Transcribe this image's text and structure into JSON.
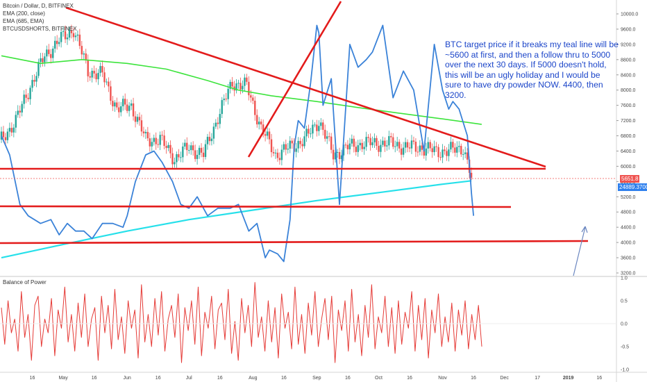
{
  "legend": {
    "symbol": "Bitcoin / Dollar, D, BITFINEX",
    "ema200": "EMA (200, close)",
    "ema685": "EMA (685, EMA)",
    "shorts": "BTCUSDSHORTS, BITFINEX"
  },
  "annotation": "BTC target price if it breaks my teal line will be ~5600 at first, and then a follow thru to 5000 over the next 30 days. If 5000 doesn't hold, this will be an ugly holiday and I would be sure to have dry powder NOW. 4400, then 3200.",
  "lower_pane_label": "Balance of Power",
  "tags": {
    "last_price": "5651.8",
    "shorts_value": "24889.3700"
  },
  "colors": {
    "up": "#26a69a",
    "down": "#ef5350",
    "ema200": "#3ce43c",
    "ema685": "#26e0ea",
    "shorts": "#3a82d8",
    "trend": "#e31b1b",
    "bop": "#e53935",
    "arrow": "#6a86c0"
  },
  "chart_data": [
    {
      "type": "line",
      "title": "Bitcoin / Dollar, D, BITFINEX",
      "x_tick_labels": [
        "16",
        "May",
        "16",
        "Jun",
        "16",
        "Jul",
        "16",
        "Aug",
        "16",
        "Sep",
        "16",
        "Oct",
        "16",
        "Nov",
        "16",
        "Dec",
        "17",
        "2019",
        "16"
      ],
      "y_tick_labels": [
        "10000.0",
        "9600.0",
        "9200.0",
        "8800.0",
        "8400.0",
        "8000.0",
        "7600.0",
        "7200.0",
        "6800.0",
        "6400.0",
        "6000.0",
        "5600.0",
        "5200.0",
        "4800.0",
        "4400.0",
        "4000.0",
        "3600.0",
        "3200.0"
      ],
      "ylim": [
        3200,
        10250
      ],
      "xlim": [
        "2018-04-01",
        "2019-01-23"
      ],
      "price_close": {
        "x": [
          "2018-04-01",
          "2018-04-08",
          "2018-04-15",
          "2018-04-22",
          "2018-04-29",
          "2018-05-06",
          "2018-05-13",
          "2018-05-20",
          "2018-05-27",
          "2018-06-03",
          "2018-06-10",
          "2018-06-17",
          "2018-06-24",
          "2018-07-01",
          "2018-07-08",
          "2018-07-15",
          "2018-07-22",
          "2018-07-29",
          "2018-08-05",
          "2018-08-12",
          "2018-08-19",
          "2018-08-26",
          "2018-09-02",
          "2018-09-09",
          "2018-09-16",
          "2018-09-23",
          "2018-09-30",
          "2018-10-07",
          "2018-10-14",
          "2018-10-21",
          "2018-10-28",
          "2018-11-04",
          "2018-11-11",
          "2018-11-14",
          "2018-11-15"
        ],
        "y": [
          6700,
          7200,
          8100,
          8900,
          9300,
          9600,
          8500,
          8400,
          7500,
          7600,
          6700,
          6700,
          6200,
          6500,
          6300,
          7300,
          8200,
          8100,
          7000,
          6300,
          6500,
          6700,
          7200,
          6300,
          6500,
          6600,
          6600,
          6600,
          6500,
          6500,
          6400,
          6400,
          6500,
          5900,
          5650
        ]
      },
      "series": [
        {
          "name": "EMA (200, close)",
          "x": [
            "2018-04-01",
            "2018-04-20",
            "2018-05-10",
            "2018-06-01",
            "2018-06-20",
            "2018-07-10",
            "2018-07-25",
            "2018-08-10",
            "2018-09-01",
            "2018-09-20",
            "2018-10-10",
            "2018-10-31",
            "2018-11-20"
          ],
          "y": [
            8900,
            8700,
            8800,
            8700,
            8550,
            8250,
            8000,
            7850,
            7700,
            7550,
            7400,
            7250,
            7100
          ]
        },
        {
          "name": "EMA (685, EMA)",
          "x": [
            "2018-04-01",
            "2018-05-01",
            "2018-06-01",
            "2018-07-01",
            "2018-08-01",
            "2018-09-01",
            "2018-10-01",
            "2018-11-01",
            "2018-11-15"
          ],
          "y": [
            3600,
            3950,
            4300,
            4600,
            4850,
            5100,
            5310,
            5530,
            5620
          ]
        },
        {
          "name": "BTCUSDSHORTS, BITFINEX",
          "x": [
            "2018-04-01",
            "2018-04-05",
            "2018-04-10",
            "2018-04-14",
            "2018-04-20",
            "2018-04-25",
            "2018-04-29",
            "2018-05-03",
            "2018-05-07",
            "2018-05-11",
            "2018-05-15",
            "2018-05-20",
            "2018-05-25",
            "2018-05-30",
            "2018-06-01",
            "2018-06-05",
            "2018-06-10",
            "2018-06-14",
            "2018-06-18",
            "2018-06-23",
            "2018-06-27",
            "2018-07-01",
            "2018-07-05",
            "2018-07-10",
            "2018-07-15",
            "2018-07-18",
            "2018-07-21",
            "2018-07-25",
            "2018-07-30",
            "2018-08-03",
            "2018-08-07",
            "2018-08-09",
            "2018-08-13",
            "2018-08-16",
            "2018-08-19",
            "2018-08-21",
            "2018-08-23",
            "2018-08-26",
            "2018-08-29",
            "2018-09-01",
            "2018-09-02",
            "2018-09-04",
            "2018-09-08",
            "2018-09-12",
            "2018-09-17",
            "2018-09-21",
            "2018-09-25",
            "2018-09-28",
            "2018-10-03",
            "2018-10-08",
            "2018-10-13",
            "2018-10-18",
            "2018-10-23",
            "2018-10-28",
            "2018-11-01",
            "2018-11-04",
            "2018-11-06",
            "2018-11-09",
            "2018-11-13",
            "2018-11-15",
            "2018-11-16"
          ],
          "y": [
            6800,
            6300,
            5000,
            4700,
            4500,
            4600,
            4200,
            4500,
            4300,
            4300,
            4100,
            4500,
            4500,
            4400,
            4700,
            5600,
            6300,
            6400,
            6100,
            5600,
            5000,
            4900,
            5200,
            4700,
            4900,
            4900,
            4900,
            5000,
            4300,
            4500,
            3600,
            3800,
            3700,
            3500,
            4600,
            6500,
            7200,
            7000,
            8200,
            9700,
            9500,
            7600,
            8300,
            5000,
            9200,
            8600,
            8800,
            9000,
            9700,
            7800,
            8500,
            8000,
            6400,
            9200,
            8000,
            7500,
            7700,
            7500,
            6800,
            5300,
            4700
          ]
        }
      ],
      "annotation_lines": [
        "descending trendline",
        "rising trendline",
        "horizontal support 5900",
        "horizontal support 4900",
        "horizontal support 3950",
        "arrow"
      ]
    },
    {
      "type": "bar",
      "title": "Balance of Power",
      "y_tick_labels": [
        "1.0",
        "0.5",
        "0.0",
        "-0.5",
        "-1.0"
      ],
      "ylim": [
        -1,
        1
      ],
      "series": [
        {
          "name": "Balance of Power",
          "values": [
            0.35,
            -0.45,
            0.5,
            -0.2,
            0.1,
            -0.6,
            0.7,
            -0.3,
            0.2,
            -0.8,
            0.4,
            0.6,
            -0.5,
            0.1,
            -0.2,
            0.55,
            -0.7,
            0.3,
            -0.1,
            0.8,
            -0.4,
            0.2,
            -0.6,
            0.45,
            -0.3,
            0.65,
            -0.5,
            0.1,
            0.35,
            -0.8,
            0.6,
            -0.2,
            0.4,
            -0.55,
            0.75,
            -0.35,
            0.15,
            -0.65,
            0.5,
            -0.1,
            0.3,
            -0.75,
            0.85,
            -0.4,
            0.2,
            -0.5,
            0.55,
            -0.25,
            0.7,
            -0.6,
            0.1,
            0.4,
            -0.3,
            0.65,
            -0.85,
            0.35,
            -0.15,
            0.5,
            -0.45,
            0.8,
            -0.7,
            0.25,
            -0.1,
            0.6,
            -0.55,
            0.3,
            0.45,
            -0.35,
            0.75,
            -0.65,
            0.05,
            -0.8,
            0.55,
            -0.2,
            0.4,
            -0.5,
            0.9,
            -0.3,
            0.15,
            -0.6,
            0.5,
            -0.4,
            0.35,
            -0.75,
            0.65,
            -0.1,
            0.25,
            -0.55,
            0.8,
            -0.45,
            0.2,
            -0.65,
            0.45,
            -0.25,
            0.7,
            -0.5,
            0.1,
            0.55,
            -0.35,
            0.6,
            -0.85,
            0.3,
            -0.15,
            0.5,
            -0.6,
            0.75,
            -0.4,
            0.2,
            -0.7,
            0.4,
            -0.3,
            0.85,
            -0.55,
            0.15,
            -0.2,
            0.6,
            -0.5,
            0.35,
            -0.65,
            0.5,
            -0.45,
            0.25,
            -0.1,
            0.7,
            -0.6,
            0.4,
            -0.35,
            0.55,
            -0.75,
            0.3,
            -0.2,
            0.65,
            -0.5,
            0.15,
            -0.4,
            0.45,
            -0.6,
            0.3,
            -0.25,
            0.5,
            -0.55,
            0.2,
            -0.35,
            0.4,
            -0.5
          ]
        }
      ]
    }
  ]
}
